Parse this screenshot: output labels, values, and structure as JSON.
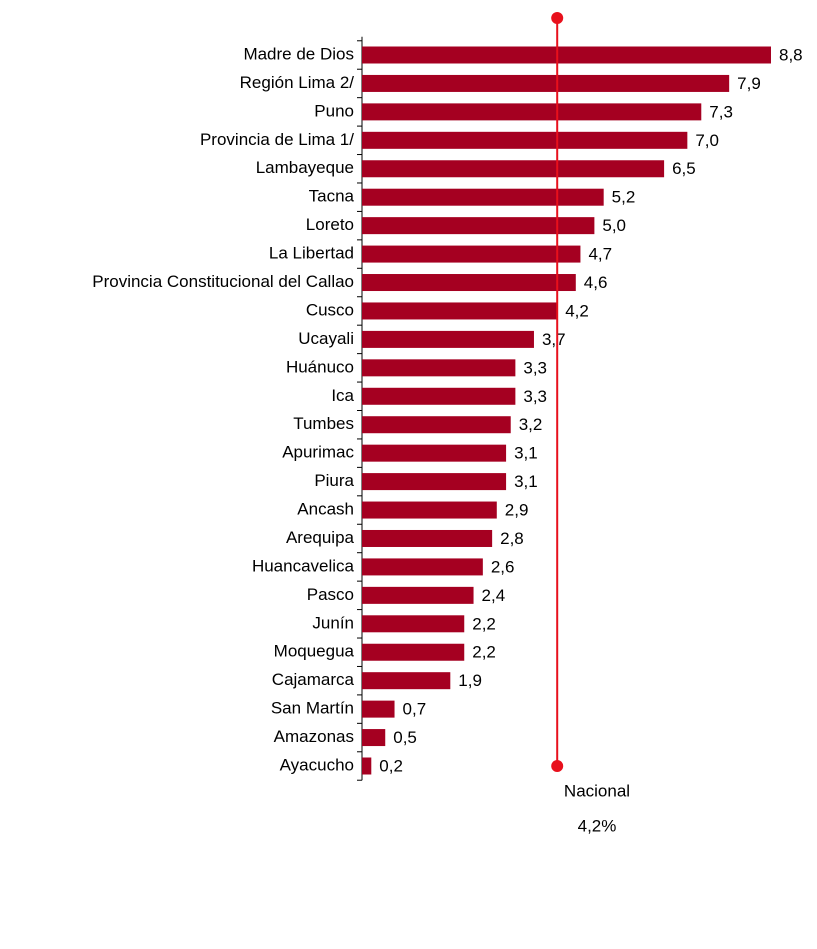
{
  "chart_data": {
    "type": "bar",
    "orientation": "horizontal",
    "categories": [
      "Madre de Dios",
      "Región Lima 2/",
      "Puno",
      "Provincia de Lima 1/",
      "Lambayeque",
      "Tacna",
      "Loreto",
      "La Libertad",
      "Provincia Constitucional del Callao",
      "Cusco",
      "Ucayali",
      "Huánuco",
      "Ica",
      "Tumbes",
      "Apurimac",
      "Piura",
      "Ancash",
      "Arequipa",
      "Huancavelica",
      "Pasco",
      "Junín",
      "Moquegua",
      "Cajamarca",
      "San Martín",
      "Amazonas",
      "Ayacucho"
    ],
    "values": [
      8.8,
      7.9,
      7.3,
      7.0,
      6.5,
      5.2,
      5.0,
      4.7,
      4.6,
      4.2,
      3.7,
      3.3,
      3.3,
      3.2,
      3.1,
      3.1,
      2.9,
      2.8,
      2.6,
      2.4,
      2.2,
      2.2,
      1.9,
      0.7,
      0.5,
      0.2
    ],
    "value_labels": [
      "8,8",
      "7,9",
      "7,3",
      "7,0",
      "6,5",
      "5,2",
      "5,0",
      "4,7",
      "4,6",
      "4,2",
      "3,7",
      "3,3",
      "3,3",
      "3,2",
      "3,1",
      "3,1",
      "2,9",
      "2,8",
      "2,6",
      "2,4",
      "2,2",
      "2,2",
      "1,9",
      "0,7",
      "0,5",
      "0,2"
    ],
    "color": "#a50021",
    "xlim": [
      0,
      8.8
    ],
    "reference_line": {
      "name": "Nacional",
      "value": 4.2,
      "label": "4,2%",
      "color": "#e8101c"
    }
  }
}
